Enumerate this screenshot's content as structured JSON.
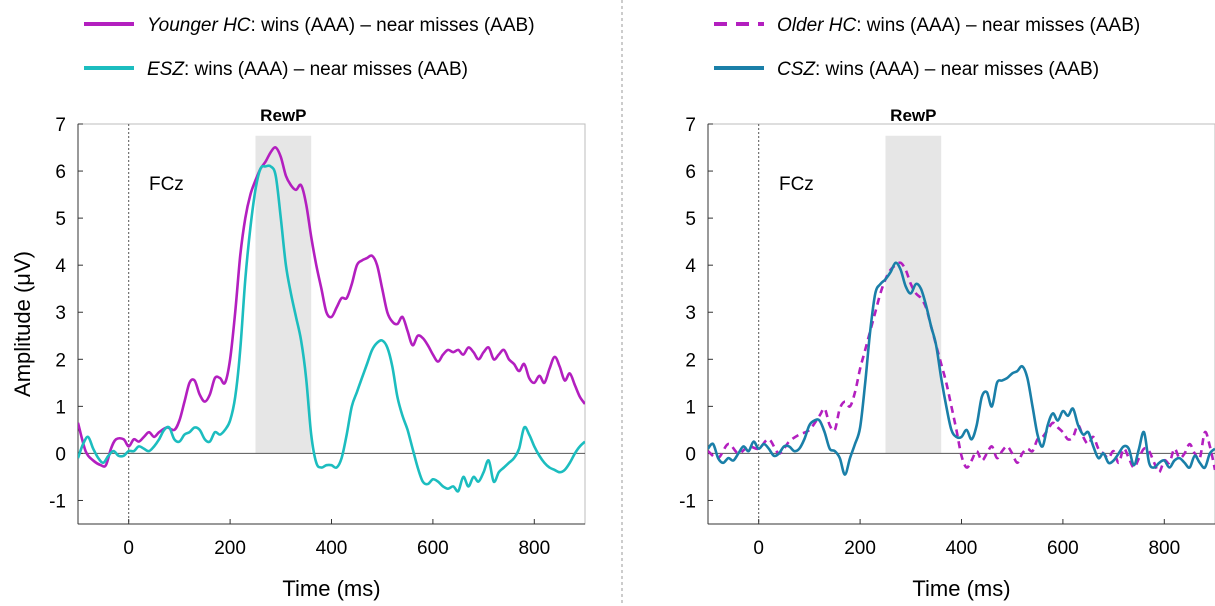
{
  "figure": {
    "panels": [
      "left",
      "right"
    ]
  },
  "chart_data": [
    {
      "type": "line",
      "ylabel": "Amplitude (μV)",
      "xlabel": "Time (ms)",
      "xlim": [
        -100,
        900
      ],
      "ylim": [
        -1.5,
        7
      ],
      "xticks": [
        0,
        200,
        400,
        600,
        800
      ],
      "yticks": [
        -1,
        0,
        1,
        2,
        3,
        4,
        5,
        6,
        7
      ],
      "channel_label": "FCz",
      "window": {
        "label": "RewP",
        "start": 250,
        "end": 360
      },
      "grid": false,
      "legend_position": "top-left",
      "series": [
        {
          "name": "Younger HC:  wins (AAA) – near misses (AAB)",
          "name_italic": "Younger HC",
          "name_rest": ":  wins (AAA) – near misses (AAB)",
          "color": "#b31fbf",
          "style": "solid",
          "x": [
            -100,
            -85,
            -70,
            -55,
            -45,
            -35,
            -25,
            -10,
            0,
            10,
            20,
            30,
            40,
            50,
            60,
            75,
            90,
            100,
            110,
            120,
            130,
            140,
            150,
            160,
            170,
            180,
            190,
            200,
            210,
            220,
            230,
            240,
            250,
            260,
            270,
            280,
            290,
            300,
            310,
            320,
            330,
            340,
            350,
            360,
            370,
            380,
            390,
            400,
            410,
            420,
            430,
            440,
            450,
            460,
            470,
            480,
            490,
            500,
            510,
            520,
            530,
            540,
            550,
            560,
            570,
            580,
            590,
            600,
            610,
            620,
            630,
            640,
            650,
            660,
            670,
            680,
            690,
            700,
            710,
            720,
            730,
            740,
            750,
            760,
            770,
            780,
            790,
            800,
            810,
            820,
            830,
            840,
            850,
            860,
            870,
            880,
            890,
            900
          ],
          "y": [
            0.65,
            0.05,
            -0.15,
            -0.25,
            -0.25,
            0.1,
            0.3,
            0.3,
            0.15,
            0.3,
            0.25,
            0.35,
            0.45,
            0.35,
            0.45,
            0.55,
            0.5,
            0.7,
            1.1,
            1.5,
            1.55,
            1.25,
            1.1,
            1.25,
            1.6,
            1.6,
            1.5,
            2.0,
            3.0,
            4.2,
            5.0,
            5.5,
            5.8,
            6.05,
            6.2,
            6.4,
            6.5,
            6.3,
            5.9,
            5.7,
            5.6,
            5.7,
            5.3,
            4.6,
            4.0,
            3.5,
            3.0,
            2.9,
            3.1,
            3.3,
            3.3,
            3.6,
            4.0,
            4.1,
            4.15,
            4.2,
            4.0,
            3.5,
            3.0,
            2.8,
            2.75,
            2.9,
            2.6,
            2.3,
            2.5,
            2.45,
            2.3,
            2.1,
            1.95,
            2.1,
            2.2,
            2.15,
            2.2,
            2.1,
            2.25,
            2.15,
            2.0,
            2.15,
            2.25,
            2.0,
            2.1,
            2.2,
            2.0,
            1.9,
            1.75,
            1.9,
            1.6,
            1.5,
            1.65,
            1.5,
            1.8,
            2.05,
            1.85,
            1.55,
            1.7,
            1.45,
            1.2,
            1.05
          ]
        },
        {
          "name": "ESZ: wins (AAA) – near misses (AAB)",
          "name_italic": "ESZ",
          "name_rest": ": wins (AAA) – near misses (AAB)",
          "color": "#1cbdbf",
          "style": "solid",
          "x": [
            -100,
            -90,
            -80,
            -70,
            -60,
            -50,
            -40,
            -30,
            -20,
            -10,
            0,
            10,
            20,
            30,
            40,
            50,
            60,
            70,
            80,
            90,
            100,
            110,
            120,
            130,
            140,
            150,
            160,
            170,
            180,
            190,
            200,
            210,
            220,
            230,
            240,
            250,
            260,
            270,
            280,
            290,
            300,
            310,
            320,
            330,
            340,
            350,
            360,
            370,
            380,
            390,
            400,
            410,
            420,
            430,
            440,
            450,
            460,
            470,
            480,
            490,
            500,
            510,
            520,
            530,
            540,
            550,
            560,
            570,
            580,
            590,
            600,
            610,
            620,
            630,
            640,
            650,
            660,
            670,
            680,
            690,
            700,
            710,
            720,
            730,
            740,
            750,
            760,
            770,
            780,
            790,
            800,
            810,
            820,
            830,
            840,
            850,
            860,
            870,
            880,
            890,
            900
          ],
          "y": [
            -0.1,
            0.2,
            0.35,
            0.1,
            -0.1,
            -0.2,
            -0.05,
            0.05,
            -0.05,
            -0.05,
            0.05,
            0.05,
            0.15,
            0.1,
            0.05,
            0.15,
            0.3,
            0.5,
            0.55,
            0.3,
            0.25,
            0.4,
            0.45,
            0.55,
            0.5,
            0.3,
            0.25,
            0.45,
            0.4,
            0.5,
            0.7,
            1.2,
            2.2,
            3.7,
            4.8,
            5.6,
            6.05,
            6.1,
            6.1,
            5.9,
            5.0,
            4.0,
            3.4,
            2.9,
            2.4,
            1.6,
            0.4,
            -0.2,
            -0.3,
            -0.25,
            -0.25,
            -0.3,
            -0.1,
            0.4,
            1.0,
            1.3,
            1.6,
            1.9,
            2.2,
            2.35,
            2.4,
            2.25,
            1.85,
            1.2,
            0.8,
            0.5,
            0.1,
            -0.3,
            -0.6,
            -0.65,
            -0.55,
            -0.6,
            -0.7,
            -0.75,
            -0.7,
            -0.8,
            -0.5,
            -0.7,
            -0.5,
            -0.6,
            -0.4,
            -0.15,
            -0.6,
            -0.4,
            -0.3,
            -0.2,
            -0.1,
            0.1,
            0.55,
            0.4,
            0.15,
            -0.05,
            -0.2,
            -0.3,
            -0.35,
            -0.4,
            -0.35,
            -0.2,
            0.0,
            0.15,
            0.25
          ]
        }
      ]
    },
    {
      "type": "line",
      "ylabel": "",
      "xlabel": "Time (ms)",
      "xlim": [
        -100,
        900
      ],
      "ylim": [
        -1.5,
        7
      ],
      "xticks": [
        0,
        200,
        400,
        600,
        800
      ],
      "yticks": [
        -1,
        0,
        1,
        2,
        3,
        4,
        5,
        6,
        7
      ],
      "channel_label": "FCz",
      "window": {
        "label": "RewP",
        "start": 250,
        "end": 360
      },
      "grid": false,
      "legend_position": "top-left",
      "series": [
        {
          "name": "Older HC:  wins (AAA) – near misses (AAB)",
          "name_italic": "Older HC",
          "name_rest": ":  wins (AAA) – near misses (AAB)",
          "color": "#b31fbf",
          "style": "dashed",
          "x": [
            -100,
            -80,
            -60,
            -40,
            -20,
            0,
            20,
            40,
            60,
            80,
            100,
            120,
            130,
            140,
            150,
            160,
            170,
            180,
            190,
            200,
            210,
            220,
            230,
            240,
            250,
            260,
            270,
            280,
            290,
            300,
            310,
            320,
            330,
            340,
            350,
            360,
            370,
            380,
            390,
            400,
            410,
            420,
            430,
            440,
            450,
            460,
            470,
            480,
            490,
            500,
            510,
            520,
            530,
            540,
            550,
            560,
            570,
            580,
            590,
            600,
            610,
            620,
            630,
            640,
            650,
            660,
            670,
            680,
            690,
            700,
            710,
            720,
            730,
            740,
            750,
            760,
            770,
            780,
            790,
            800,
            810,
            820,
            830,
            840,
            850,
            860,
            870,
            880,
            890,
            900
          ],
          "y": [
            0.05,
            -0.1,
            0.2,
            0.0,
            0.15,
            0.1,
            0.3,
            0.0,
            0.25,
            0.4,
            0.5,
            0.8,
            0.95,
            0.6,
            0.5,
            0.95,
            1.1,
            1.0,
            1.3,
            1.8,
            2.2,
            2.6,
            3.0,
            3.4,
            3.7,
            3.9,
            4.0,
            4.05,
            3.9,
            3.6,
            3.4,
            3.3,
            3.1,
            2.7,
            2.3,
            1.9,
            1.5,
            1.0,
            0.5,
            -0.05,
            -0.3,
            -0.15,
            0.05,
            -0.15,
            0.0,
            0.15,
            -0.1,
            0.05,
            0.15,
            0.0,
            -0.2,
            0.0,
            0.1,
            0.05,
            0.3,
            0.35,
            0.5,
            0.65,
            0.55,
            0.45,
            0.3,
            0.35,
            0.6,
            0.35,
            0.2,
            0.35,
            0.1,
            0.0,
            -0.1,
            0.05,
            -0.2,
            0.1,
            -0.1,
            -0.3,
            -0.1,
            0.1,
            0.05,
            -0.2,
            -0.4,
            -0.15,
            -0.2,
            0.1,
            -0.1,
            0.0,
            0.2,
            0.0,
            -0.1,
            0.45,
            0.15,
            -0.35
          ]
        },
        {
          "name": "CSZ: wins (AAA) – near misses (AAB)",
          "name_italic": "CSZ",
          "name_rest": ": wins (AAA) – near misses (AAB)",
          "color": "#1a7fa8",
          "style": "solid",
          "x": [
            -100,
            -90,
            -80,
            -70,
            -60,
            -50,
            -40,
            -30,
            -20,
            -10,
            0,
            10,
            20,
            30,
            40,
            50,
            60,
            70,
            80,
            90,
            100,
            110,
            120,
            130,
            140,
            150,
            160,
            170,
            180,
            190,
            200,
            210,
            220,
            230,
            240,
            250,
            260,
            270,
            280,
            290,
            300,
            310,
            320,
            330,
            340,
            350,
            360,
            370,
            380,
            390,
            400,
            410,
            420,
            430,
            440,
            450,
            460,
            470,
            480,
            490,
            500,
            510,
            520,
            530,
            540,
            550,
            560,
            570,
            580,
            590,
            600,
            610,
            620,
            630,
            640,
            650,
            660,
            670,
            680,
            690,
            700,
            710,
            720,
            730,
            740,
            750,
            760,
            770,
            780,
            790,
            800,
            810,
            820,
            830,
            840,
            850,
            860,
            870,
            880,
            890,
            900
          ],
          "y": [
            0.1,
            0.2,
            -0.1,
            -0.2,
            -0.1,
            -0.15,
            0.0,
            0.15,
            0.05,
            0.25,
            0.1,
            0.2,
            0.1,
            -0.05,
            0.0,
            0.15,
            0.15,
            0.05,
            0.1,
            0.3,
            0.6,
            0.7,
            0.7,
            0.45,
            0.1,
            0.05,
            -0.1,
            -0.45,
            -0.1,
            0.2,
            0.55,
            1.5,
            2.6,
            3.4,
            3.6,
            3.7,
            3.85,
            4.05,
            3.9,
            3.55,
            3.4,
            3.6,
            3.5,
            3.15,
            2.7,
            2.3,
            1.6,
            1.0,
            0.5,
            0.35,
            0.35,
            0.5,
            0.3,
            0.6,
            1.2,
            1.3,
            1.0,
            1.5,
            1.55,
            1.6,
            1.7,
            1.75,
            1.85,
            1.6,
            1.0,
            0.4,
            0.15,
            0.6,
            0.85,
            0.7,
            0.9,
            0.8,
            0.95,
            0.6,
            0.4,
            0.45,
            0.15,
            -0.1,
            0.0,
            -0.2,
            -0.15,
            0.0,
            0.15,
            0.1,
            -0.25,
            0.1,
            0.45,
            -0.2,
            -0.3,
            -0.2,
            -0.15,
            -0.3,
            -0.15,
            -0.1,
            -0.2,
            -0.3,
            -0.05,
            -0.2,
            -0.3,
            0.0,
            0.1
          ]
        }
      ]
    }
  ]
}
